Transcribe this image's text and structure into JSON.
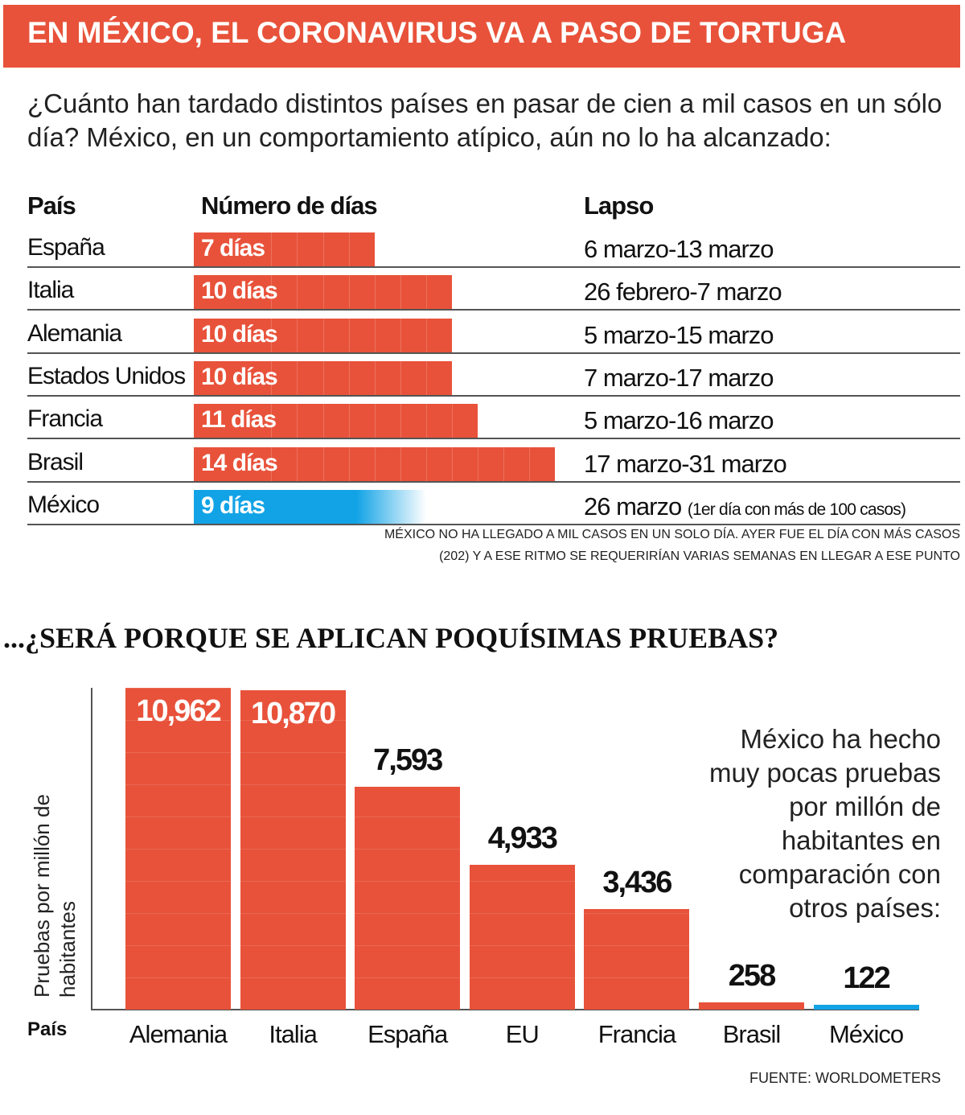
{
  "title": "EN MÉXICO, EL CORONAVIRUS VA A PASO DE TORTUGA",
  "subtitle": "¿Cuánto han tardado distintos países en pasar de cien a mil casos en un sólo día? México, en un comportamiento atípico, aún no lo ha alcanzado:",
  "colors": {
    "accent": "#e8523a",
    "mexico": "#12a3e6"
  },
  "table": {
    "headers": {
      "country": "País",
      "days": "Número de días",
      "lapse": "Lapso"
    },
    "rows": [
      {
        "country": "España",
        "days": 7,
        "label": "7 días",
        "lapse": "6 marzo-13 marzo",
        "note": ""
      },
      {
        "country": "Italia",
        "days": 10,
        "label": "10 días",
        "lapse": "26 febrero-7 marzo",
        "note": ""
      },
      {
        "country": "Alemania",
        "days": 10,
        "label": "10 días",
        "lapse": "5 marzo-15 marzo",
        "note": ""
      },
      {
        "country": "Estados Unidos",
        "days": 10,
        "label": "10 días",
        "lapse": "7 marzo-17 marzo",
        "note": ""
      },
      {
        "country": "Francia",
        "days": 11,
        "label": "11 días",
        "lapse": "5 marzo-16 marzo",
        "note": ""
      },
      {
        "country": "Brasil",
        "days": 14,
        "label": "14 días",
        "lapse": "17 marzo-31 marzo",
        "note": ""
      },
      {
        "country": "México",
        "days": 9,
        "label": "9 días",
        "lapse": "26 marzo",
        "note": "(1er día con más de 100 casos)",
        "ongoing": true
      }
    ],
    "footnote": [
      "MÉXICO NO HA LLEGADO A MIL CASOS EN UN SOLO DÍA. AYER FUE EL DÍA CON MÁS CASOS",
      "(202) Y A ESE RITMO SE REQUERIRÍAN VARIAS SEMANAS EN LLEGAR A ESE PUNTO"
    ]
  },
  "question": "...¿SERÁ PORQUE SE APLICAN POQUÍSIMAS PRUEBAS?",
  "chart_data": {
    "type": "bar",
    "ylabel": "Pruebas por millón de habitantes",
    "xlabel": "País",
    "categories": [
      "Alemania",
      "Italia",
      "España",
      "EU",
      "Francia",
      "Brasil",
      "México"
    ],
    "values": [
      10962,
      10870,
      7593,
      4933,
      3436,
      258,
      122
    ],
    "value_labels": [
      "10,962",
      "10,870",
      "7,593",
      "4,933",
      "3,436",
      "258",
      "122"
    ],
    "ylim": [
      0,
      10962
    ],
    "grid": false,
    "highlight": "México"
  },
  "annotation": "México ha hecho muy pocas pruebas por millón de habitantes en comparación con otros países:",
  "source": "FUENTE: WORLDOMETERS"
}
